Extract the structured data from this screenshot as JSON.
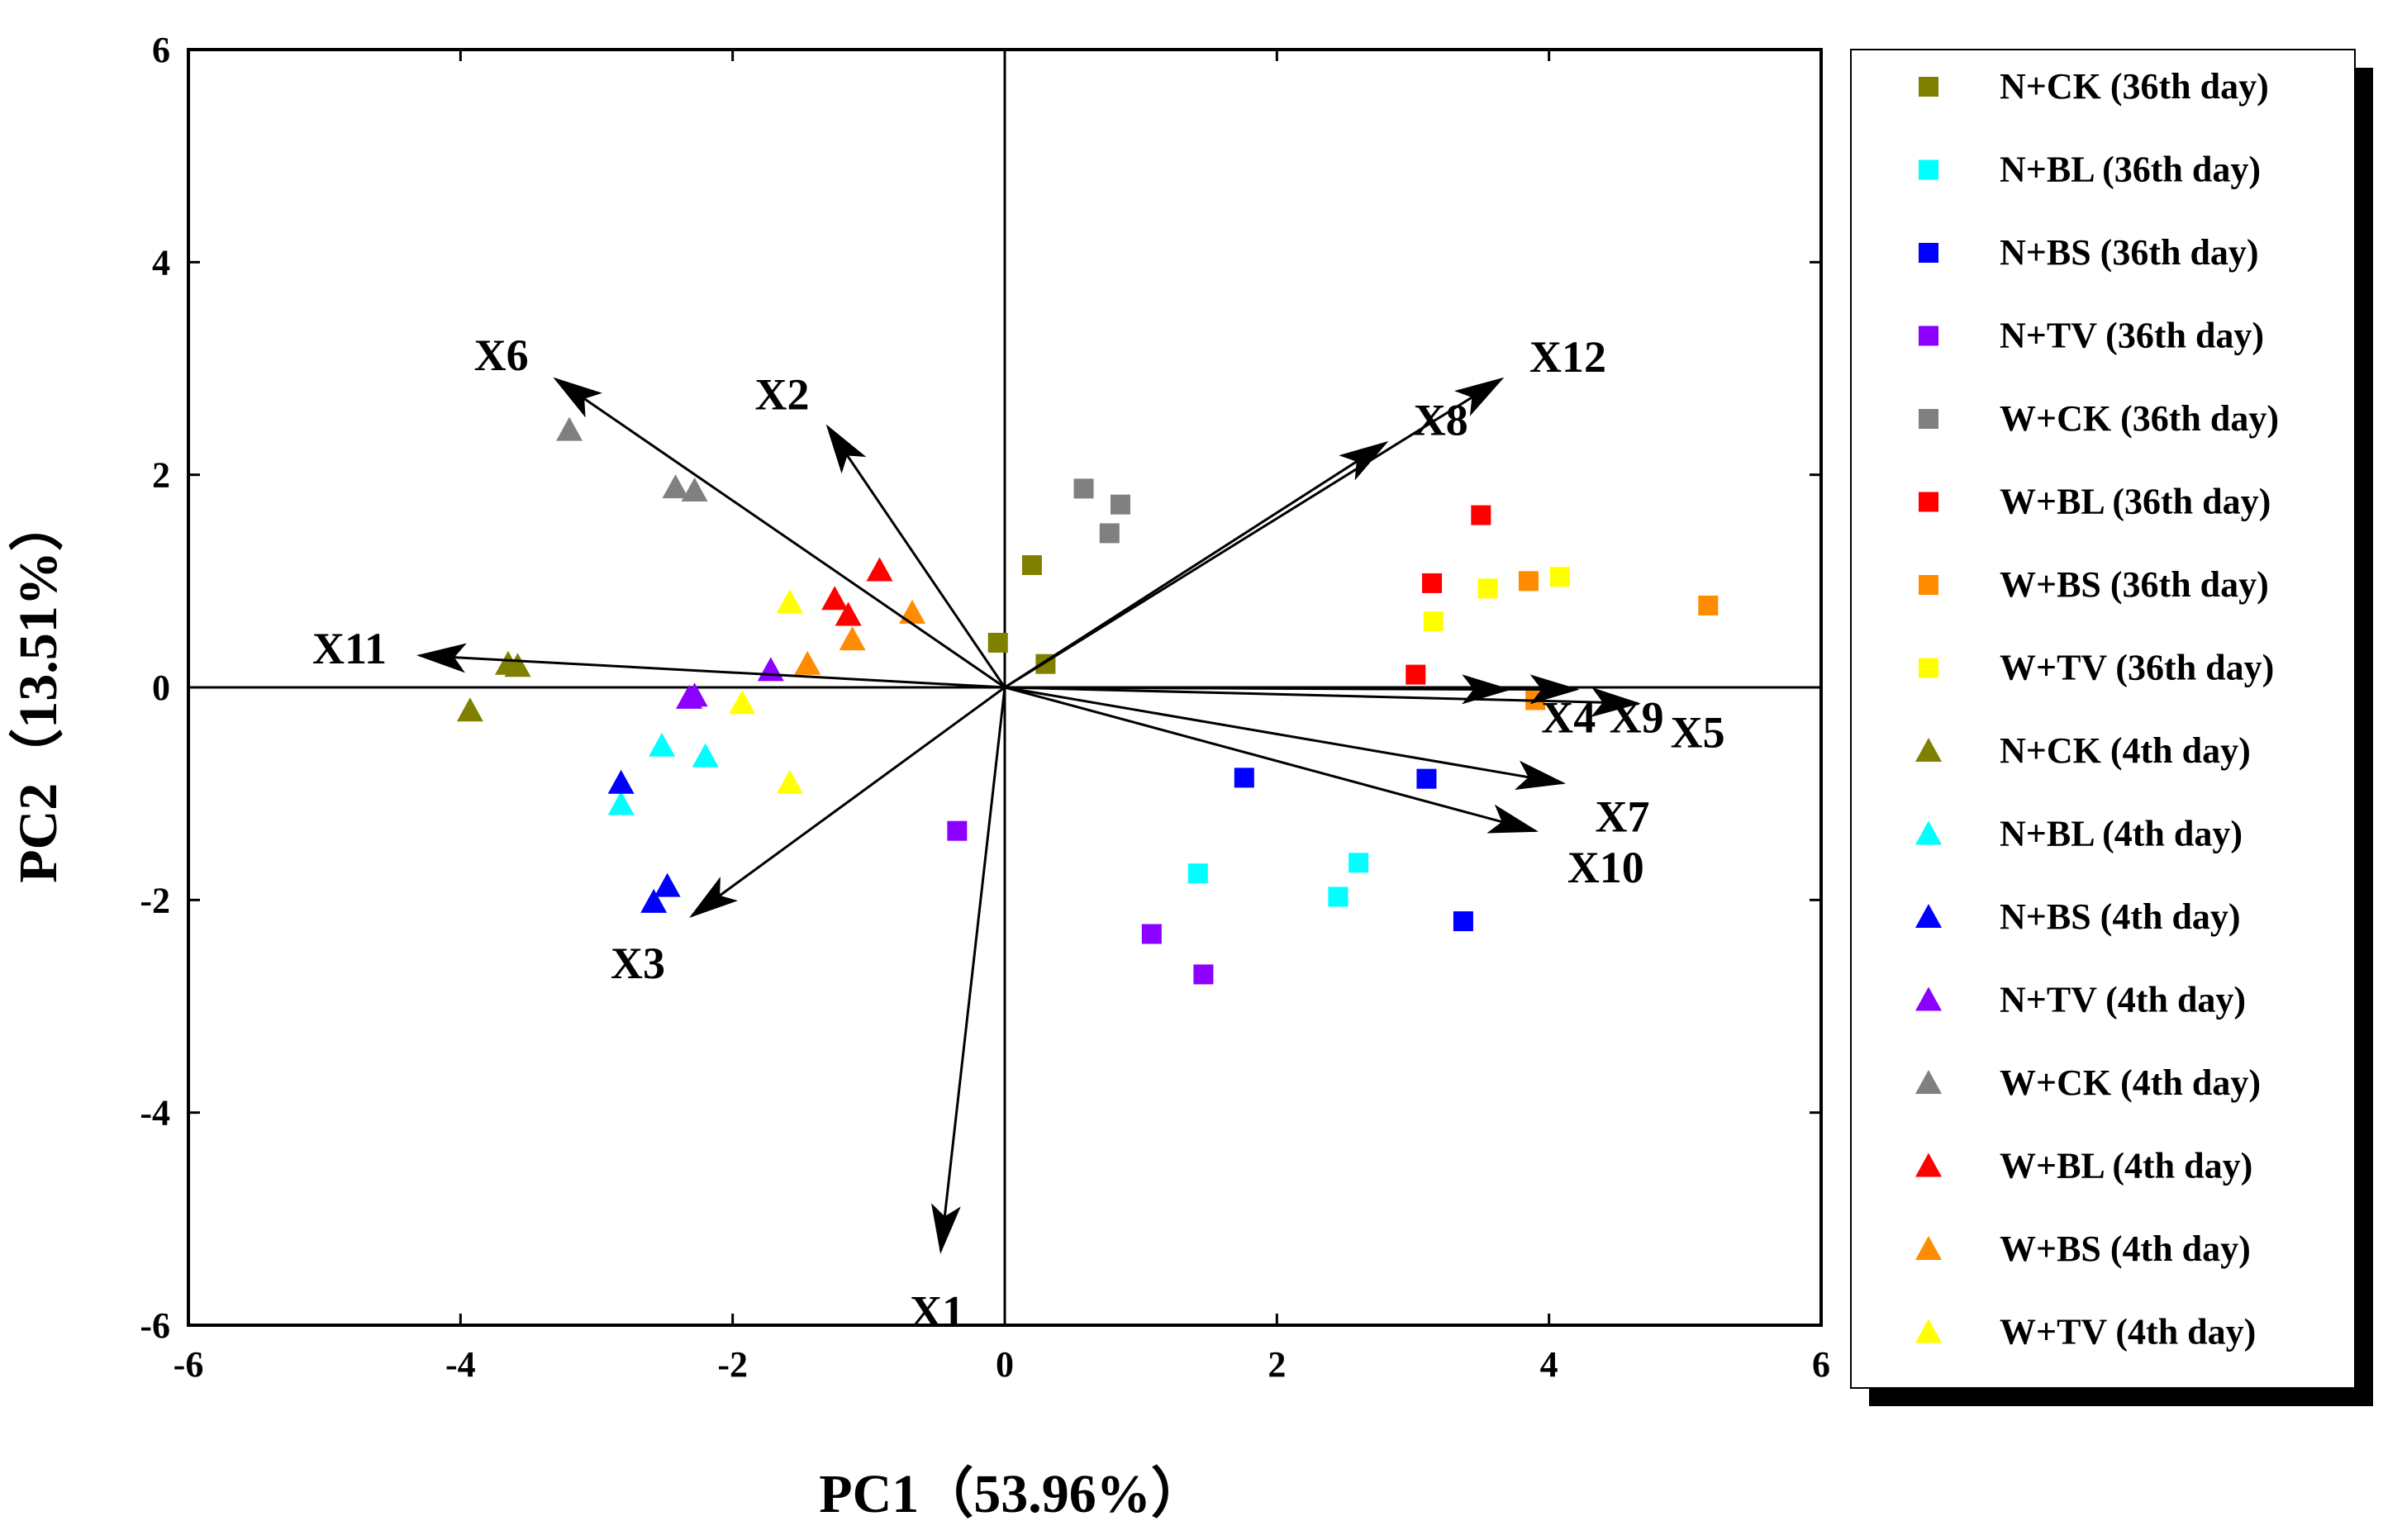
{
  "chart_data": {
    "type": "scatter",
    "title": "",
    "xlabel": "PC1（53.96%）",
    "ylabel": "PC2（13.51%）",
    "xlim": [
      -6,
      6
    ],
    "ylim": [
      -6,
      6
    ],
    "xticks": [
      "-6",
      "-4",
      "-2",
      "0",
      "2",
      "4",
      "6"
    ],
    "yticks": [
      "-6",
      "-4",
      "-2",
      "0",
      "2",
      "4",
      "6"
    ],
    "grid": false,
    "legend_position": "right",
    "reference_lines": [
      "x=0",
      "y=0"
    ],
    "vectors": [
      {
        "name": "X1",
        "x": -0.47,
        "y": -5.3
      },
      {
        "name": "X2",
        "x": -1.3,
        "y": 2.45
      },
      {
        "name": "X3",
        "x": -2.3,
        "y": -2.15
      },
      {
        "name": "X4",
        "x": 3.7,
        "y": -0.02
      },
      {
        "name": "X5",
        "x": 4.65,
        "y": -0.15
      },
      {
        "name": "X6",
        "x": -3.3,
        "y": 2.9
      },
      {
        "name": "X7",
        "x": 4.1,
        "y": -0.9
      },
      {
        "name": "X8",
        "x": 2.8,
        "y": 2.3
      },
      {
        "name": "X9",
        "x": 4.2,
        "y": -0.02
      },
      {
        "name": "X10",
        "x": 3.9,
        "y": -1.35
      },
      {
        "name": "X11",
        "x": -4.3,
        "y": 0.3
      },
      {
        "name": "X12",
        "x": 3.65,
        "y": 2.9
      }
    ],
    "series": [
      {
        "name": "N+CK (36th day)",
        "marker": "square",
        "color": "#808000",
        "points": [
          [
            0.2,
            1.15
          ],
          [
            -0.05,
            0.42
          ],
          [
            0.3,
            0.22
          ]
        ]
      },
      {
        "name": "N+BL (36th day)",
        "marker": "square",
        "color": "#00ffff",
        "points": [
          [
            1.42,
            -1.75
          ],
          [
            2.6,
            -1.65
          ],
          [
            2.45,
            -1.97
          ]
        ]
      },
      {
        "name": "N+BS (36th day)",
        "marker": "square",
        "color": "#0000ff",
        "points": [
          [
            1.76,
            -0.85
          ],
          [
            3.1,
            -0.86
          ],
          [
            3.37,
            -2.2
          ]
        ]
      },
      {
        "name": "N+TV (36th day)",
        "marker": "square",
        "color": "#8b00ff",
        "points": [
          [
            -0.35,
            -1.35
          ],
          [
            1.08,
            -2.32
          ],
          [
            1.46,
            -2.7
          ]
        ]
      },
      {
        "name": "W+CK (36th day)",
        "marker": "square",
        "color": "#808080",
        "points": [
          [
            0.58,
            1.87
          ],
          [
            0.85,
            1.72
          ],
          [
            0.77,
            1.45
          ]
        ]
      },
      {
        "name": "W+BL (36th day)",
        "marker": "square",
        "color": "#ff0000",
        "points": [
          [
            3.5,
            1.62
          ],
          [
            3.14,
            0.98
          ],
          [
            3.02,
            0.12
          ]
        ]
      },
      {
        "name": "W+BS (36th day)",
        "marker": "square",
        "color": "#ff8c00",
        "points": [
          [
            3.85,
            1.0
          ],
          [
            5.17,
            0.77
          ],
          [
            3.9,
            -0.12
          ]
        ]
      },
      {
        "name": "W+TV (36th day)",
        "marker": "square",
        "color": "#ffff00",
        "points": [
          [
            3.55,
            0.93
          ],
          [
            4.08,
            1.04
          ],
          [
            3.15,
            0.62
          ]
        ]
      },
      {
        "name": "N+CK (4th day)",
        "marker": "triangle",
        "color": "#808000",
        "points": [
          [
            -3.65,
            0.22
          ],
          [
            -3.58,
            0.2
          ],
          [
            -3.93,
            -0.22
          ]
        ]
      },
      {
        "name": "N+BL (4th day)",
        "marker": "triangle",
        "color": "#00ffff",
        "points": [
          [
            -2.52,
            -0.55
          ],
          [
            -2.2,
            -0.65
          ],
          [
            -2.82,
            -1.1
          ]
        ]
      },
      {
        "name": "N+BS (4th day)",
        "marker": "triangle",
        "color": "#0000ff",
        "points": [
          [
            -2.82,
            -0.9
          ],
          [
            -2.48,
            -1.87
          ],
          [
            -2.58,
            -2.02
          ]
        ]
      },
      {
        "name": "N+TV (4th day)",
        "marker": "triangle",
        "color": "#8b00ff",
        "points": [
          [
            -1.72,
            0.16
          ],
          [
            -2.28,
            -0.08
          ],
          [
            -2.32,
            -0.1
          ]
        ]
      },
      {
        "name": "W+CK (4th day)",
        "marker": "triangle",
        "color": "#808080",
        "points": [
          [
            -3.2,
            2.42
          ],
          [
            -2.42,
            1.88
          ],
          [
            -2.28,
            1.85
          ]
        ]
      },
      {
        "name": "W+BL (4th day)",
        "marker": "triangle",
        "color": "#ff0000",
        "points": [
          [
            -0.92,
            1.1
          ],
          [
            -1.25,
            0.83
          ],
          [
            -1.15,
            0.68
          ]
        ]
      },
      {
        "name": "W+BS (4th day)",
        "marker": "triangle",
        "color": "#ff8c00",
        "points": [
          [
            -0.68,
            0.7
          ],
          [
            -1.12,
            0.45
          ],
          [
            -1.45,
            0.22
          ]
        ]
      },
      {
        "name": "W+TV (4th day)",
        "marker": "triangle",
        "color": "#ffff00",
        "points": [
          [
            -1.58,
            0.8
          ],
          [
            -1.93,
            -0.15
          ],
          [
            -1.58,
            -0.9
          ]
        ]
      }
    ]
  }
}
